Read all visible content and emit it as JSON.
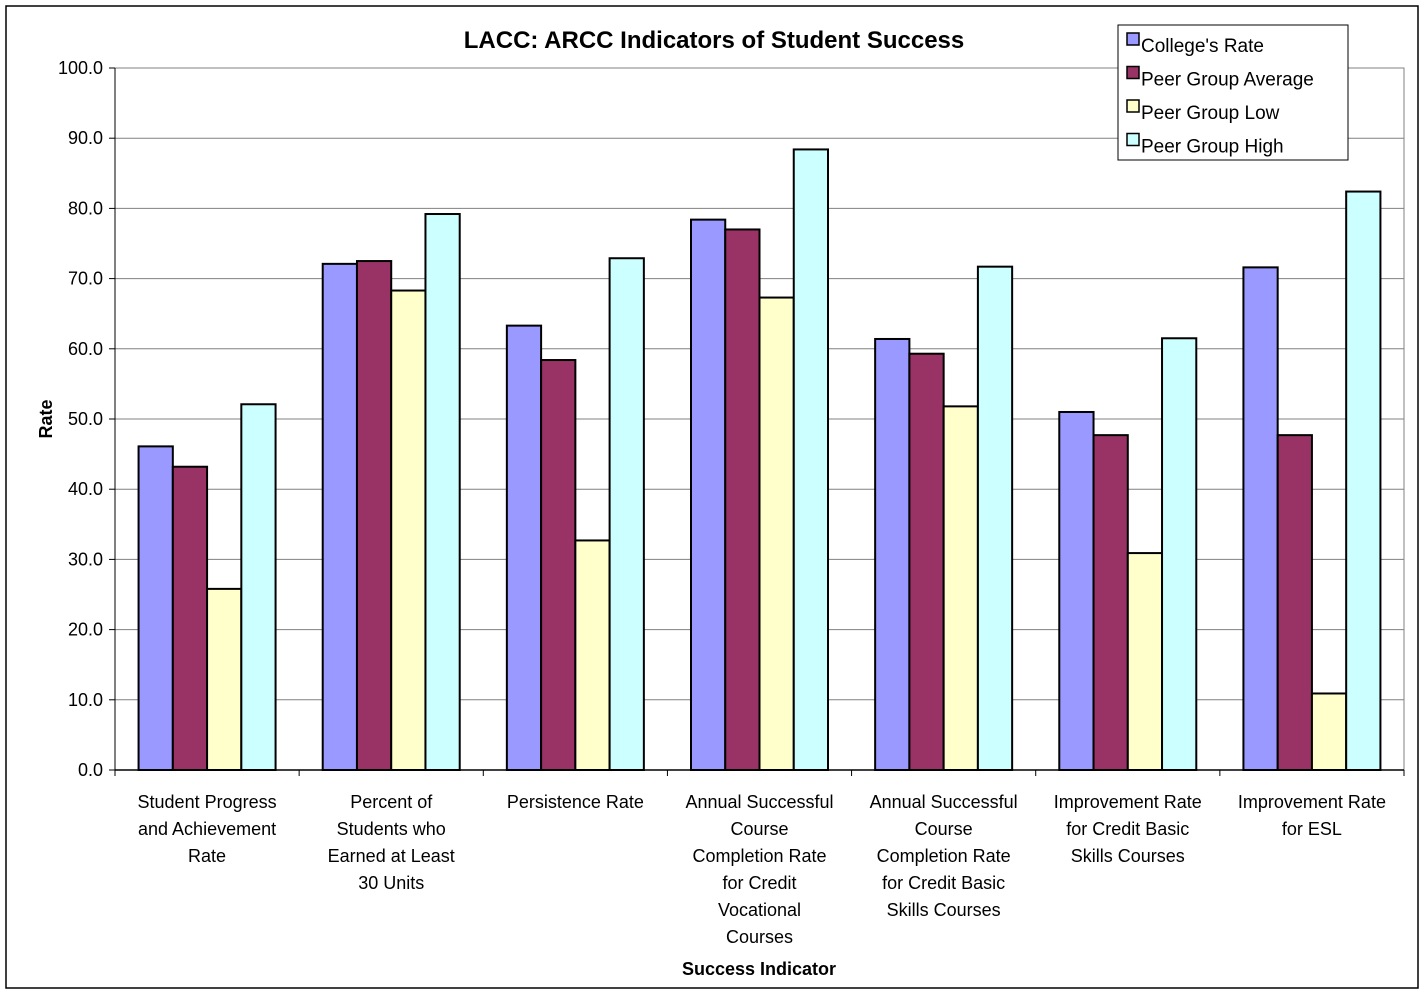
{
  "chart_data": {
    "type": "bar",
    "title": "LACC:  ARCC Indicators of Student Success",
    "xlabel": "Success Indicator",
    "ylabel": "Rate",
    "ylim": [
      0,
      100
    ],
    "yticks": [
      "0.0",
      "10.0",
      "20.0",
      "30.0",
      "40.0",
      "50.0",
      "60.0",
      "70.0",
      "80.0",
      "90.0",
      "100.0"
    ],
    "grid": true,
    "legend_position": "top-right",
    "categories": [
      [
        "Student Progress",
        "and Achievement",
        "Rate"
      ],
      [
        "Percent of",
        "Students who",
        "Earned at Least",
        "30 Units"
      ],
      [
        "Persistence Rate"
      ],
      [
        "Annual Successful",
        "Course",
        "Completion Rate",
        "for Credit",
        "Vocational",
        "Courses"
      ],
      [
        "Annual Successful",
        "Course",
        "Completion Rate",
        "for Credit Basic",
        "Skills Courses"
      ],
      [
        "Improvement Rate",
        "for Credit Basic",
        "Skills Courses"
      ],
      [
        "Improvement Rate",
        "for ESL"
      ]
    ],
    "series": [
      {
        "name": "College's Rate",
        "color": "#9999ff",
        "values": [
          46.1,
          72.1,
          63.3,
          78.4,
          61.4,
          51.0,
          71.6
        ]
      },
      {
        "name": "Peer Group Average",
        "color": "#993366",
        "values": [
          43.2,
          72.5,
          58.4,
          77.0,
          59.3,
          47.7,
          47.7
        ]
      },
      {
        "name": "Peer Group Low",
        "color": "#ffffcc",
        "values": [
          25.8,
          68.3,
          32.7,
          67.3,
          51.8,
          30.9,
          10.9
        ]
      },
      {
        "name": "Peer Group High",
        "color": "#ccffff",
        "values": [
          52.1,
          79.2,
          72.9,
          88.4,
          71.7,
          61.5,
          82.4
        ]
      }
    ]
  }
}
